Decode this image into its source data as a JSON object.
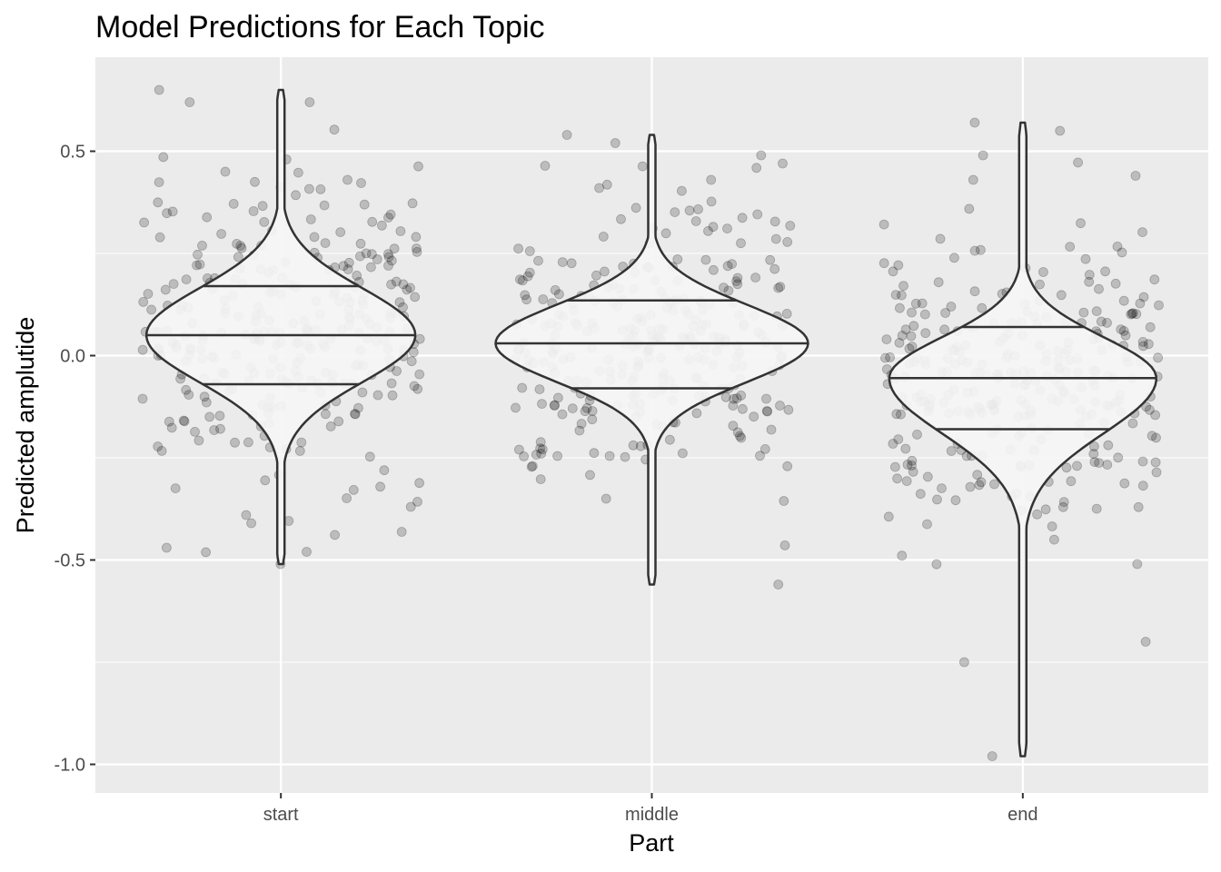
{
  "chart_data": {
    "type": "violin",
    "title": "Model Predictions for Each Topic",
    "xlabel": "Part",
    "ylabel": "Predicted amplutide",
    "categories": [
      "start",
      "middle",
      "end"
    ],
    "y_ticks": [
      0.5,
      0.0,
      -0.5,
      -1.0
    ],
    "y_tick_labels": [
      "0.5",
      "0.0",
      "-0.5",
      "-1.0"
    ],
    "ylim": [
      -1.07,
      0.73
    ],
    "grid": true,
    "points_per_group": 300,
    "groups": [
      {
        "category": "start",
        "quantiles": {
          "q25": -0.07,
          "median": 0.05,
          "q75": 0.17
        },
        "min": -0.51,
        "max": 0.65,
        "jitter_points_shown": [
          0.65,
          0.62,
          0.62,
          0.48,
          0.45,
          0.43,
          -0.37,
          -0.39,
          -0.41,
          -0.47,
          -0.48,
          -0.51
        ]
      },
      {
        "category": "middle",
        "quantiles": {
          "q25": -0.08,
          "median": 0.03,
          "q75": 0.135
        },
        "min": -0.56,
        "max": 0.54,
        "jitter_points_shown": [
          0.54,
          0.49,
          0.47,
          0.43,
          0.41,
          -0.35,
          -0.56
        ]
      },
      {
        "category": "end",
        "quantiles": {
          "q25": -0.18,
          "median": -0.055,
          "q75": 0.07
        },
        "min": -0.98,
        "max": 0.57,
        "jitter_points_shown": [
          0.57,
          0.55,
          0.49,
          0.44,
          0.43,
          -0.51,
          -0.7,
          -0.75,
          -0.98
        ]
      }
    ]
  }
}
